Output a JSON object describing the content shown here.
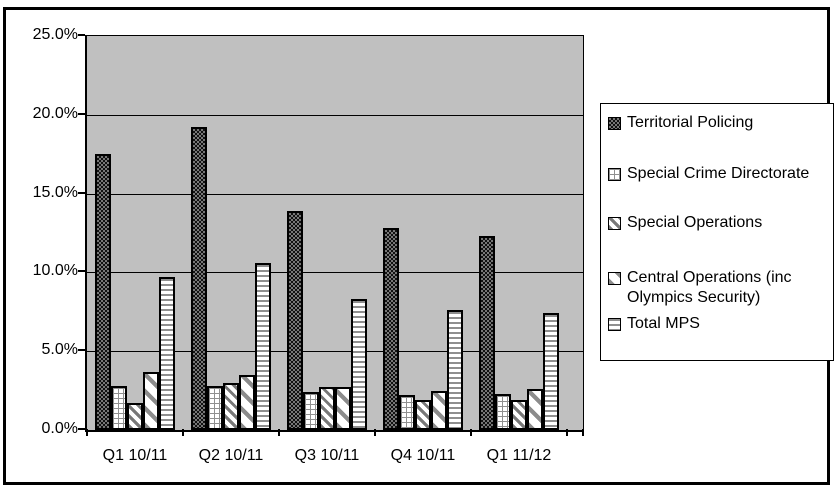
{
  "chart_data": {
    "type": "bar",
    "title": "",
    "xlabel": "",
    "ylabel": "",
    "categories": [
      "Q1 10/11",
      "Q2 10/11",
      "Q3 10/11",
      "Q4 10/11",
      "Q1 11/12"
    ],
    "series": [
      {
        "name": "Territorial Policing",
        "pattern": "dark-check",
        "values": [
          17.5,
          19.2,
          13.9,
          12.8,
          12.3
        ]
      },
      {
        "name": "Special Crime Directorate",
        "pattern": "grid",
        "values": [
          2.8,
          2.8,
          2.4,
          2.2,
          2.3
        ]
      },
      {
        "name": "Special Operations",
        "pattern": "diagonal-dense",
        "values": [
          1.7,
          3.0,
          2.7,
          1.9,
          1.9
        ]
      },
      {
        "name": "Central Operations (inc Olympics Security)",
        "pattern": "diagonal-wide",
        "values": [
          3.7,
          3.5,
          2.7,
          2.5,
          2.6
        ]
      },
      {
        "name": "Total MPS",
        "pattern": "horizontal-lines",
        "values": [
          9.7,
          10.6,
          8.3,
          7.6,
          7.4
        ]
      }
    ],
    "ylim": [
      0,
      25
    ],
    "ytick_values": [
      0,
      5,
      10,
      15,
      20,
      25
    ],
    "ytick_labels": [
      "0.0%",
      "5.0%",
      "10.0%",
      "15.0%",
      "20.0%",
      "25.0%"
    ],
    "grid": true,
    "legend_position": "right",
    "plot_bg_color": "#c0c0c0",
    "bar_outline_color": "#000000",
    "frame_border_color": "#000000"
  }
}
